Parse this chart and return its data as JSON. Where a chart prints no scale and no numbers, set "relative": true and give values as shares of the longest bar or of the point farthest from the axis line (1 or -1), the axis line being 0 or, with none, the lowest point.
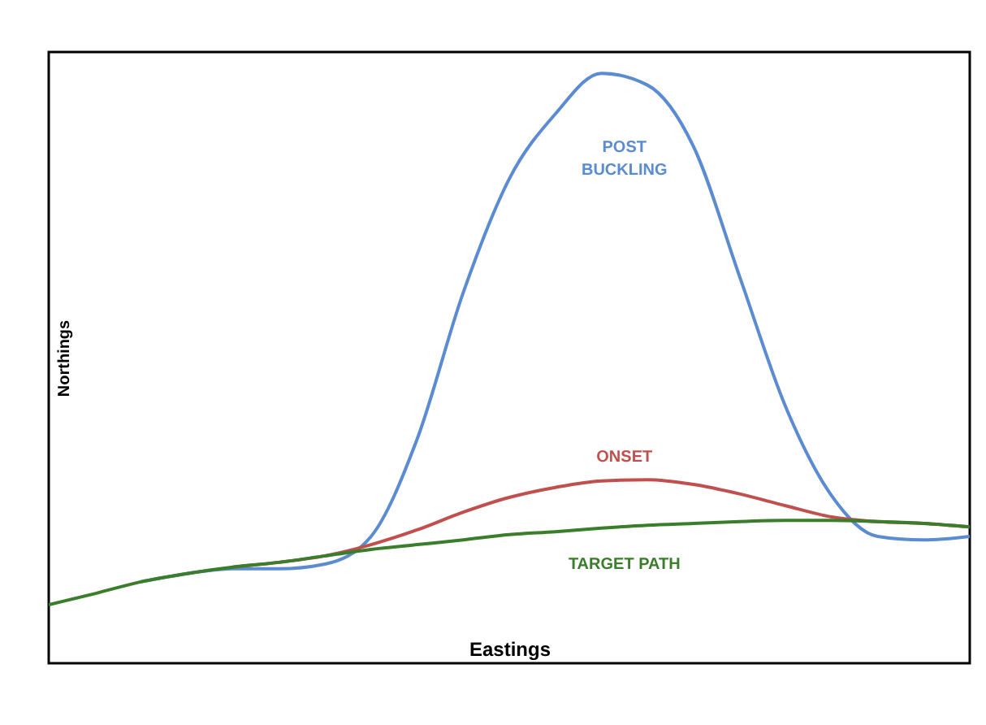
{
  "chart_data": {
    "type": "line",
    "relative": true,
    "xlabel": "Eastings",
    "ylabel": "Northings",
    "categories": [
      null,
      null,
      null,
      null,
      null,
      null,
      null,
      null,
      null,
      null,
      null,
      null,
      null,
      null,
      null,
      null,
      null,
      null,
      null,
      null,
      null
    ],
    "series": [
      {
        "name": "POST BUCKLING",
        "color": "#5b8bd0",
        "values": [
          null,
          null,
          0.138,
          0.152,
          0.16,
          0.16,
          0.168,
          0.215,
          0.38,
          0.628,
          0.821,
          0.931,
          1.0,
          0.98,
          0.876,
          0.656,
          0.435,
          0.284,
          0.215,
          0.209,
          0.215
        ]
      },
      {
        "name": "ONSET",
        "color": "#c0504d",
        "values": [
          null,
          null,
          null,
          null,
          0.163,
          0.171,
          0.182,
          0.201,
          0.226,
          0.256,
          0.281,
          0.298,
          0.309,
          0.311,
          0.303,
          0.287,
          0.267,
          0.248,
          0.24,
          0.237,
          0.231
        ]
      },
      {
        "name": "TARGET PATH",
        "color": "#3a7d2a",
        "values": [
          0.099,
          0.118,
          0.138,
          0.152,
          0.163,
          0.171,
          0.182,
          0.193,
          0.201,
          0.209,
          0.218,
          0.223,
          0.229,
          0.234,
          0.237,
          0.24,
          0.242,
          0.242,
          0.24,
          0.237,
          0.231
        ]
      }
    ]
  }
}
